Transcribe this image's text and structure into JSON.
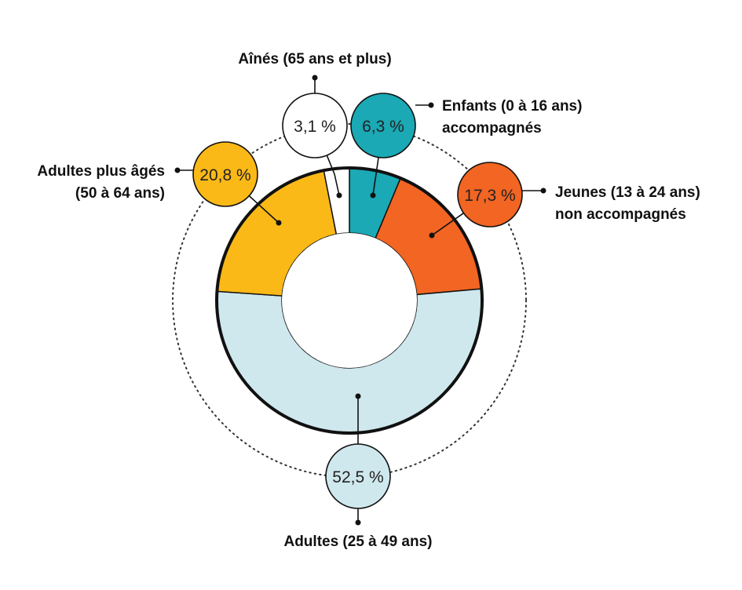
{
  "chart_data": {
    "type": "pie",
    "donut": true,
    "title": "",
    "slices": [
      {
        "label": [
          "Enfants (0 à 16 ans)",
          "accompagnés"
        ],
        "value": 6.3,
        "value_label": "6,3 %",
        "color": "#1aa9b5",
        "bubble_text_color": "#222222"
      },
      {
        "label": [
          "Jeunes (13 à 24 ans)",
          "non accompagnés"
        ],
        "value": 17.3,
        "value_label": "17,3 %",
        "color": "#f26522",
        "bubble_text_color": "#222222"
      },
      {
        "label": [
          "Adultes (25 à 49 ans)"
        ],
        "value": 52.5,
        "value_label": "52,5 %",
        "color": "#cfe8ed",
        "bubble_text_color": "#222222"
      },
      {
        "label": [
          "Adultes plus âgés",
          "(50 à 64 ans)"
        ],
        "value": 20.8,
        "value_label": "20,8 %",
        "color": "#fbb917",
        "bubble_text_color": "#222222"
      },
      {
        "label": [
          "Aînés (65 ans et plus)"
        ],
        "value": 3.1,
        "value_label": "3,1 %",
        "color": "#ffffff",
        "bubble_text_color": "#222222"
      }
    ]
  }
}
